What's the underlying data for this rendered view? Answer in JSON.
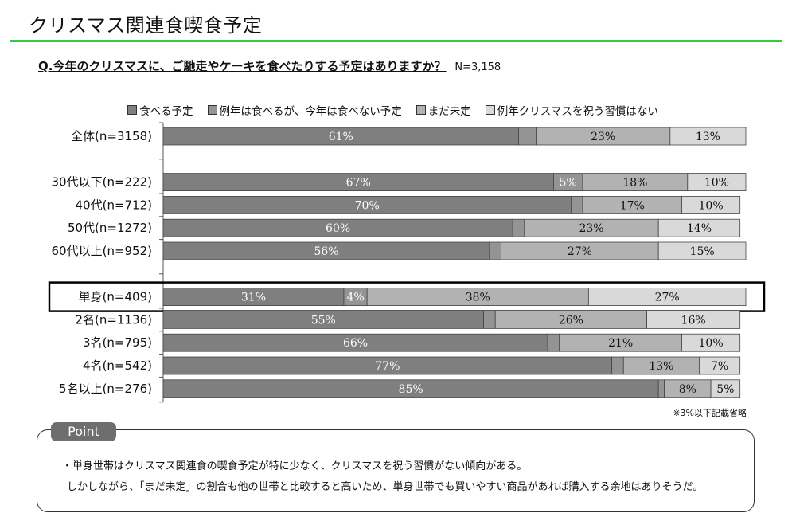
{
  "page": {
    "title": "クリスマス関連食喫食予定",
    "question": "Q.今年のクリスマスに、ご馳走やケーキを食べたりする予定はありますか？",
    "question_n": "N=3,158",
    "note": "※3%以下記載省略",
    "point_label": "Point",
    "point_line1": "・単身世帯はクリスマス関連食の喫食予定が特に少なく、クリスマスを祝う習慣がない傾向がある。",
    "point_line2": "しかしながら、「まだ未定」の割合も他の世帯と比較すると高いため、単身世帯でも買いやすい商品があれば購入する余地はありそうだ。"
  },
  "chart_data": {
    "type": "bar",
    "orientation": "horizontal",
    "stacked": true,
    "percent_stacked": true,
    "legend_position": "top",
    "series": [
      {
        "name": "食べる予定",
        "color": "#7f7f7f",
        "text_color": "#ffffff",
        "values": [
          61,
          67,
          70,
          60,
          56,
          31,
          55,
          66,
          77,
          85
        ]
      },
      {
        "name": "例年は食べるが、今年は食べない予定",
        "color": "#949494",
        "text_color": "#ffffff",
        "values": [
          3,
          5,
          2,
          2,
          2,
          4,
          2,
          2,
          2,
          1
        ],
        "labels": [
          "",
          "5%",
          "",
          "",
          "",
          "4%",
          "",
          "",
          "",
          ""
        ]
      },
      {
        "name": "まだ未定",
        "color": "#b2b2b2",
        "text_color": "#111111",
        "values": [
          23,
          18,
          17,
          23,
          27,
          38,
          26,
          21,
          13,
          8
        ]
      },
      {
        "name": "例年クリスマスを祝う習慣はない",
        "color": "#d9d9d9",
        "text_color": "#111111",
        "values": [
          13,
          10,
          10,
          14,
          15,
          27,
          16,
          10,
          7,
          5
        ]
      }
    ],
    "rows": [
      {
        "label": "全体(n=3158)",
        "group": 0
      },
      {
        "label": "30代以下(n=222)",
        "group": 1
      },
      {
        "label": "40代(n=712)",
        "group": 1
      },
      {
        "label": "50代(n=1272)",
        "group": 1
      },
      {
        "label": "60代以上(n=952)",
        "group": 1
      },
      {
        "label": "単身(n=409)",
        "group": 2,
        "highlight": true
      },
      {
        "label": "2名(n=1136)",
        "group": 2
      },
      {
        "label": "3名(n=795)",
        "group": 2
      },
      {
        "label": "4名(n=542)",
        "group": 2
      },
      {
        "label": "5名以上(n=276)",
        "group": 2
      }
    ],
    "xlim": [
      0,
      100
    ],
    "label_threshold": 3,
    "label_suffix": "%"
  }
}
